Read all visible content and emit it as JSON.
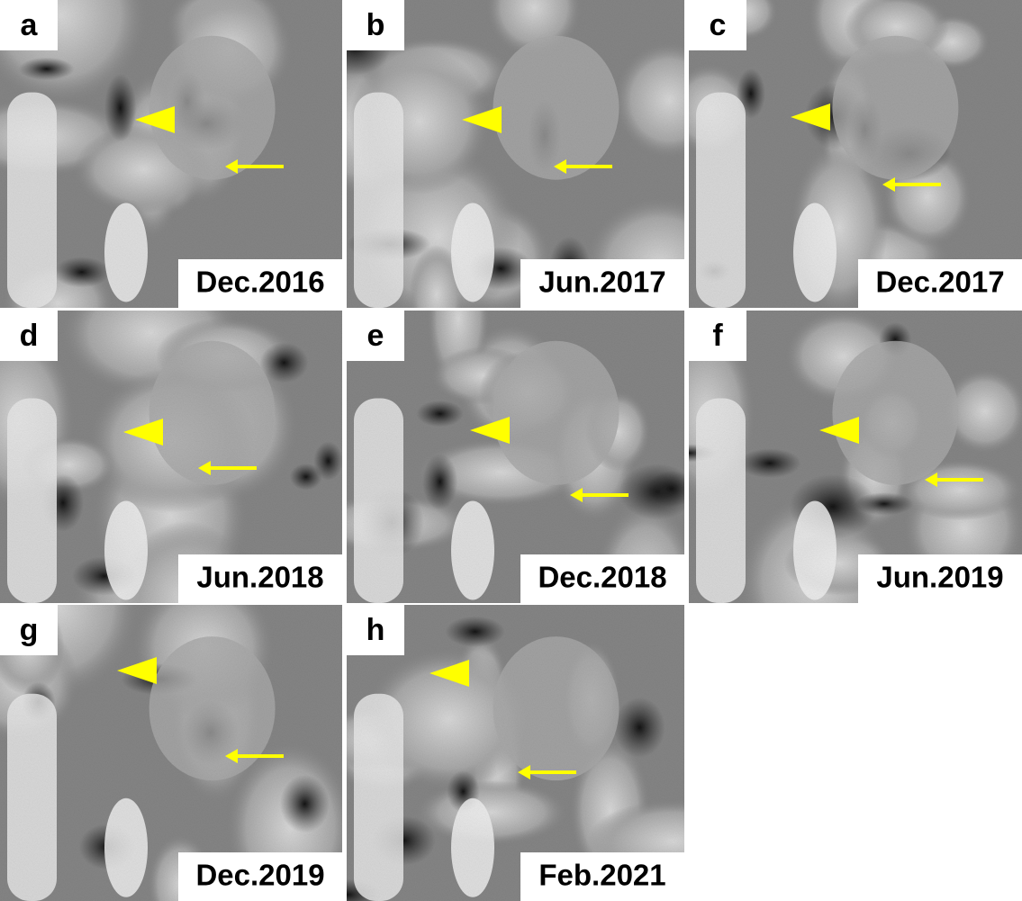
{
  "panels": [
    {
      "label": "a",
      "date": "Dec.2016"
    },
    {
      "label": "b",
      "date": "Jun.2017"
    },
    {
      "label": "c",
      "date": "Dec.2017"
    },
    {
      "label": "d",
      "date": "Jun.2018"
    },
    {
      "label": "e",
      "date": "Dec.2018"
    },
    {
      "label": "f",
      "date": "Jun.2019"
    },
    {
      "label": "g",
      "date": "Dec.2019"
    },
    {
      "label": "h",
      "date": "Feb.2021"
    }
  ]
}
